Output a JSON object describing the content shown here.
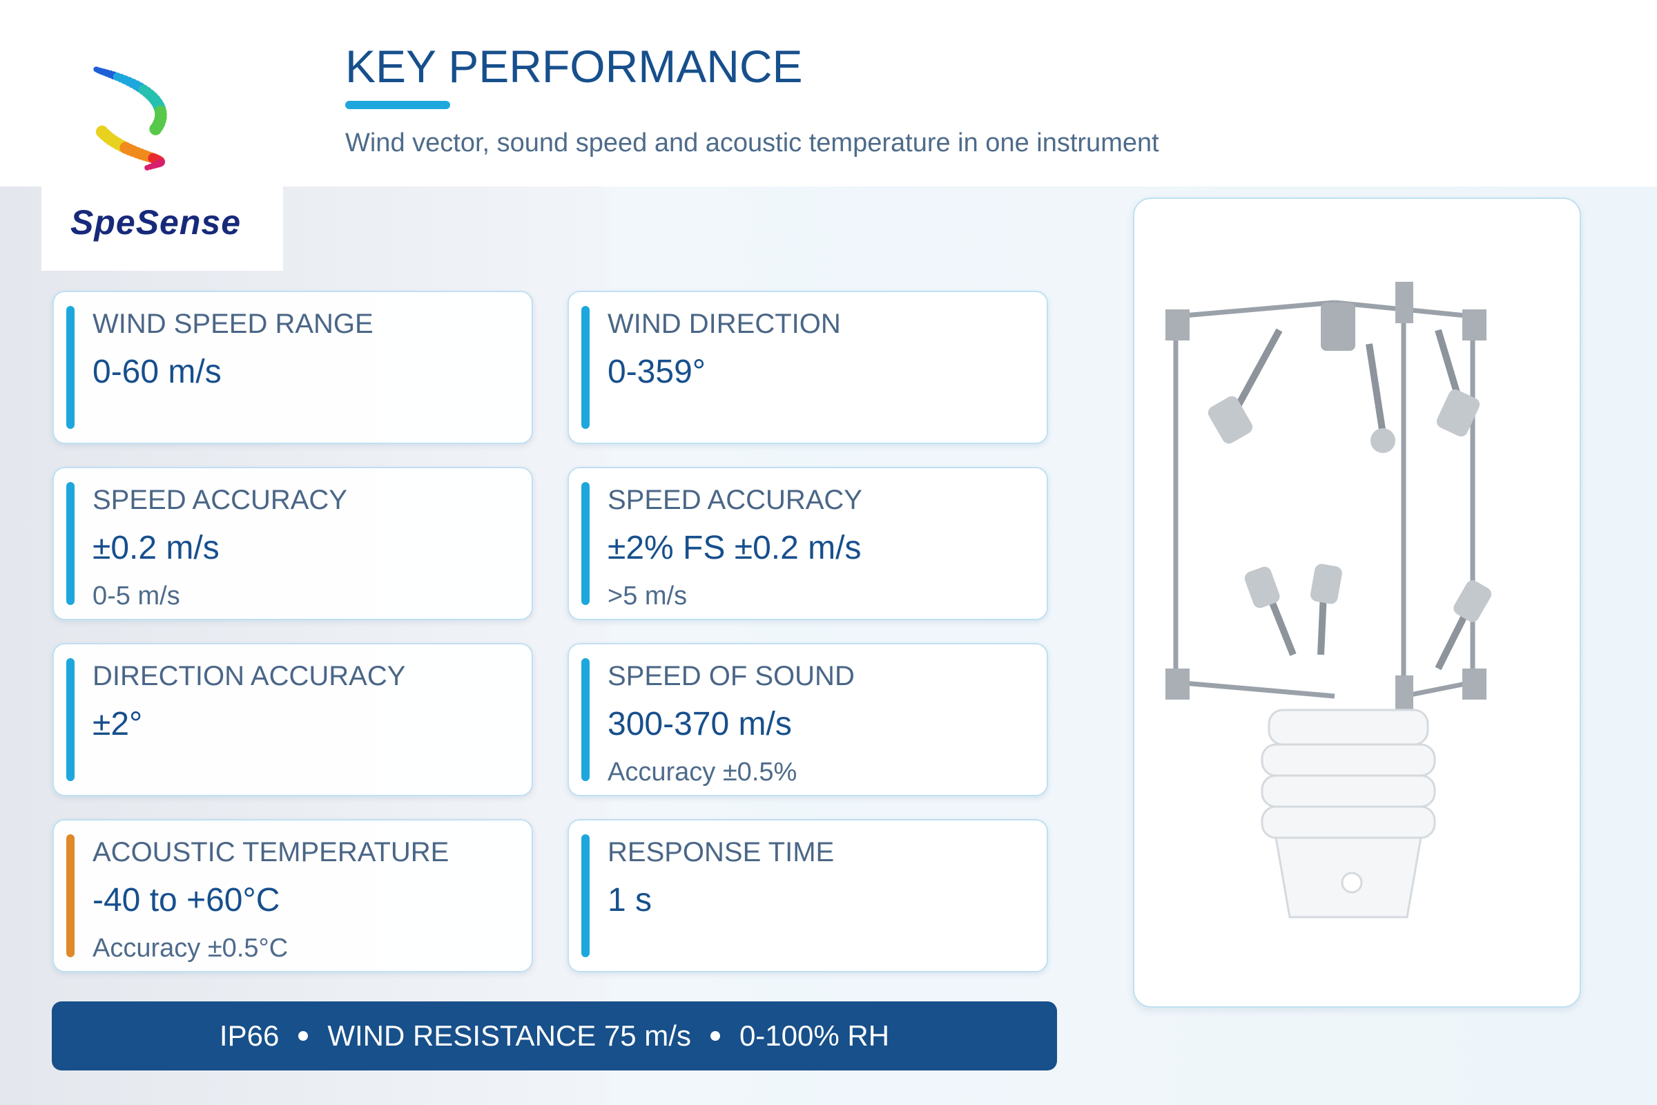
{
  "logo": {
    "text": "SpeSense"
  },
  "header": {
    "title": "KEY PERFORMANCE",
    "subtitle": "Wind vector, sound speed and acoustic temperature in one instrument"
  },
  "cards": [
    {
      "label": "WIND SPEED RANGE",
      "value": "0-60 m/s",
      "color": "#1ea7dc"
    },
    {
      "label": "WIND DIRECTION",
      "value": "0-359°",
      "color": "#1ea7dc"
    },
    {
      "label": "SPEED ACCURACY",
      "value": "±0.2 m/s",
      "note": "0-5 m/s",
      "color": "#1ea7dc"
    },
    {
      "label": "SPEED ACCURACY",
      "value": "±2% FS ±0.2 m/s",
      "note": ">5 m/s",
      "color": "#1ea7dc"
    },
    {
      "label": "DIRECTION ACCURACY",
      "value": "±2°",
      "color": "#1ea7dc"
    },
    {
      "label": "SPEED OF SOUND",
      "value": "300-370 m/s",
      "note": "Accuracy ±0.5%",
      "color": "#1ea7dc"
    },
    {
      "label": "ACOUSTIC TEMPERATURE",
      "value": "-40 to +60°C",
      "note": "Accuracy ±0.5°C",
      "color": "#e0892a"
    },
    {
      "label": "RESPONSE TIME",
      "value": "1 s",
      "color": "#1ea7dc"
    }
  ],
  "footer": {
    "items": [
      "IP66",
      "WIND RESISTANCE 75 m/s",
      "0-100% RH"
    ]
  }
}
